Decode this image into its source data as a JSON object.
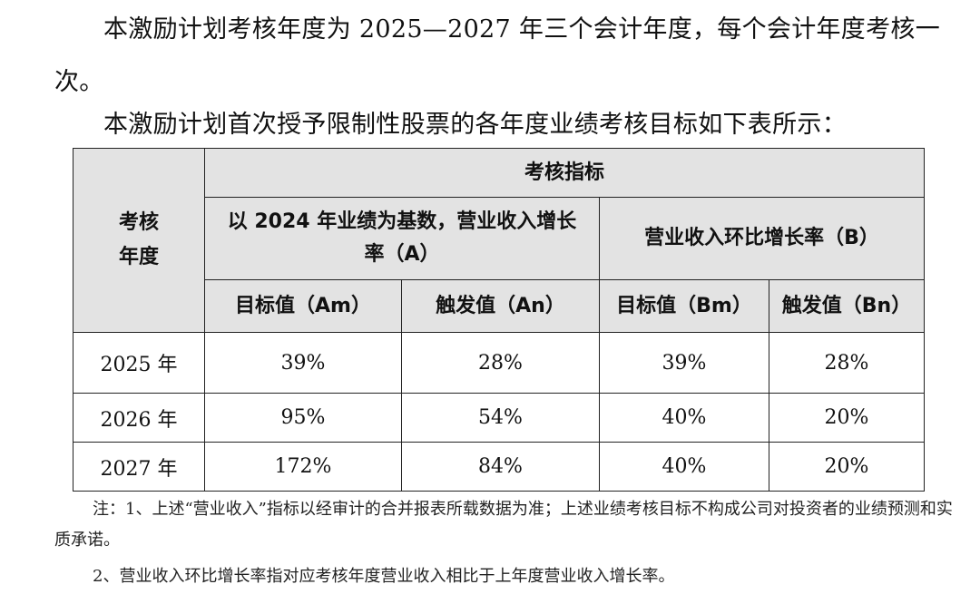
{
  "intro": {
    "period_text": "本激励计划考核年度为 2025—2027 年三个会计年度，每个会计年度考核一次。",
    "table_intro": "本激励计划首次授予限制性股票的各年度业绩考核目标如下表所示："
  },
  "table": {
    "header_year": "考核年度",
    "header_indicator": "考核指标",
    "group_a": "以 2024 年业绩为基数，营业收入增长率（A）",
    "group_b": "营业收入环比增长率（B）",
    "col_am": "目标值（Am）",
    "col_an": "触发值（An）",
    "col_bm": "目标值（Bm）",
    "col_bn": "触发值（Bn）",
    "rows": [
      {
        "year": "2025 年",
        "am": "39%",
        "an": "28%",
        "bm": "39%",
        "bn": "28%"
      },
      {
        "year": "2026 年",
        "am": "95%",
        "an": "54%",
        "bm": "40%",
        "bn": "20%"
      },
      {
        "year": "2027 年",
        "am": "172%",
        "an": "84%",
        "bm": "40%",
        "bn": "20%"
      }
    ]
  },
  "notes": {
    "note1": "注：1、上述“营业收入”指标以经审计的合并报表所载数据为准；上述业绩考核目标不构成公司对投资者的业绩预测和实质承诺。",
    "note2": "2、营业收入环比增长率指对应考核年度营业收入相比于上年度营业收入增长率。"
  }
}
